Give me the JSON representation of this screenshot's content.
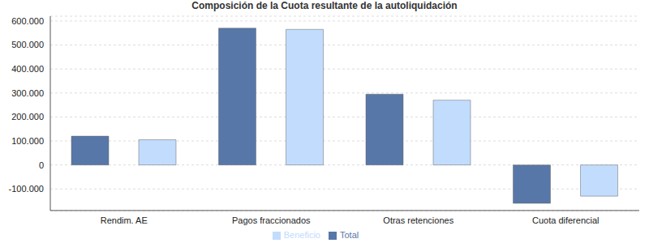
{
  "chart_data": {
    "type": "bar",
    "title": "Composición de la Cuota resultante de la autoliquidación",
    "categories": [
      "Rendim. AE",
      "Pagos fraccionados",
      "Otras retenciones",
      "Cuota diferencial"
    ],
    "series": [
      {
        "name": "Total",
        "color": "#5777a8",
        "values": [
          120000,
          570000,
          295000,
          -160000
        ]
      },
      {
        "name": "Beneficio",
        "color": "#c2dcfd",
        "values": [
          105000,
          565000,
          270000,
          -130000
        ]
      }
    ],
    "ylim": [
      -190000,
      620000
    ],
    "yticks": [
      {
        "value": -100000,
        "label": "-100.000"
      },
      0,
      {
        "value": 100000,
        "label": "100.000"
      },
      {
        "value": 200000,
        "label": "200.000"
      },
      {
        "value": 300000,
        "label": "300.000"
      },
      {
        "value": 400000,
        "label": "400.000"
      },
      {
        "value": 500000,
        "label": "500.000"
      },
      {
        "value": 600000,
        "label": "600.000"
      }
    ],
    "grid": true,
    "legend": "bottom"
  }
}
